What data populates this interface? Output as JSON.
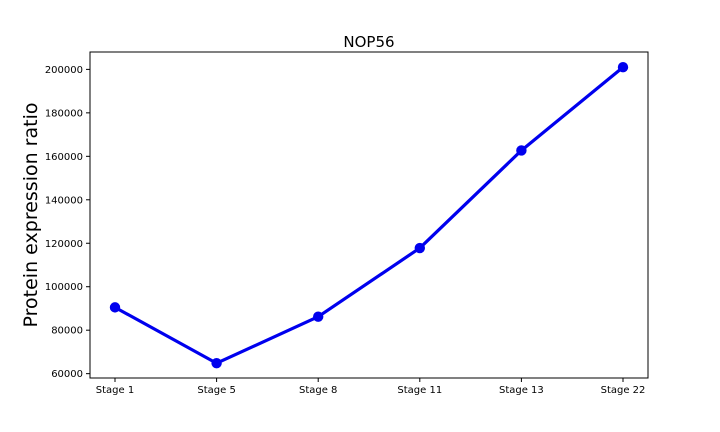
{
  "chart_data": {
    "type": "line",
    "title": "NOP56",
    "xlabel": "",
    "ylabel": "Protein expression ratio",
    "categories": [
      "Stage 1",
      "Stage 5",
      "Stage 8",
      "Stage 11",
      "Stage 13",
      "Stage 22"
    ],
    "series": [
      {
        "values": [
          90500,
          64800,
          86200,
          117800,
          162700,
          201000
        ]
      }
    ],
    "ylim": [
      58000,
      208000
    ],
    "yticks": [
      60000,
      80000,
      100000,
      120000,
      140000,
      160000,
      180000,
      200000
    ],
    "grid": false,
    "legend": "none",
    "colors": {
      "series": "#0000ee",
      "axis": "#000000",
      "background": "#ffffff"
    }
  }
}
